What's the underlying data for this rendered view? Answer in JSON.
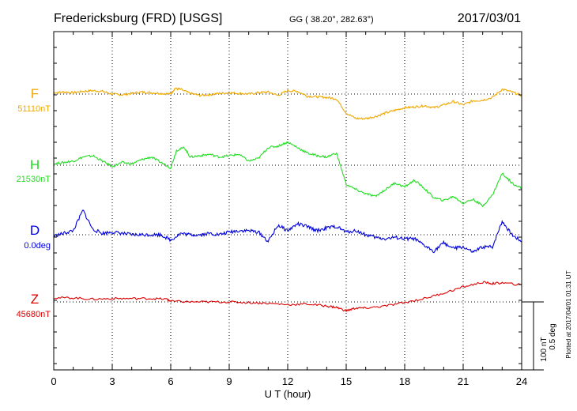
{
  "header": {
    "station": "Fredericksburg (FRD)  [USGS]",
    "coords": "GG ( 38.20°, 282.63°)",
    "date": "2017/03/01"
  },
  "side_note": "Plotted at 2017/04/01 01:31  UT",
  "scale": {
    "nt": "100 nT",
    "deg": "0.5 deg"
  },
  "chart_data": {
    "type": "line",
    "title": "Fredericksburg (FRD)  [USGS]",
    "xlabel": "U T (hour)",
    "xlim": [
      0,
      24
    ],
    "xticks": [
      "0",
      "3",
      "6",
      "9",
      "12",
      "15",
      "18",
      "21",
      "24"
    ],
    "grid": "dotted",
    "series": [
      {
        "name": "F",
        "baseline_label": "51110nT",
        "color": "#f0a800",
        "unit": "nT",
        "offset": 51110,
        "x": [
          0,
          0.5,
          1,
          1.5,
          2,
          2.5,
          3,
          3.5,
          4,
          4.5,
          5,
          5.5,
          6,
          6.2,
          6.5,
          7,
          7.5,
          8,
          8.5,
          9,
          9.5,
          10,
          10.5,
          11,
          11.5,
          12,
          12.5,
          13,
          13.5,
          14,
          14.5,
          15,
          15.5,
          16,
          16.5,
          17,
          17.5,
          18,
          18.5,
          19,
          19.5,
          20,
          20.5,
          21,
          21.5,
          22,
          22.5,
          23,
          23.5,
          24
        ],
        "y": [
          2,
          3,
          2,
          4,
          5,
          4,
          0,
          -1,
          1,
          3,
          2,
          1,
          0,
          8,
          7,
          1,
          -2,
          -1,
          1,
          2,
          1,
          0,
          2,
          3,
          -2,
          5,
          4,
          -3,
          -4,
          -5,
          -7,
          -28,
          -36,
          -36,
          -33,
          -28,
          -24,
          -20,
          -19,
          -17,
          -20,
          -16,
          -11,
          -16,
          -10,
          -9,
          -5,
          7,
          3,
          -2
        ]
      },
      {
        "name": "H",
        "baseline_label": "21530nT",
        "color": "#22dd22",
        "unit": "nT",
        "offset": 21530,
        "x": [
          0,
          0.5,
          1,
          1.5,
          2,
          2.5,
          3,
          3.5,
          4,
          4.5,
          5,
          5.5,
          6,
          6.3,
          6.7,
          7,
          7.5,
          8,
          8.5,
          9,
          9.5,
          10,
          10.5,
          11,
          11.5,
          12,
          12.5,
          13,
          13.5,
          14,
          14.5,
          15,
          15.5,
          16,
          16.5,
          17,
          17.5,
          18,
          18.5,
          19,
          19.5,
          20,
          20.5,
          21,
          21.5,
          22,
          22.5,
          23,
          23.5,
          24
        ],
        "y": [
          2,
          4,
          6,
          12,
          14,
          6,
          -2,
          4,
          2,
          8,
          12,
          4,
          -4,
          22,
          26,
          12,
          14,
          16,
          12,
          14,
          16,
          6,
          10,
          26,
          28,
          34,
          26,
          18,
          14,
          12,
          18,
          -28,
          -36,
          -42,
          -46,
          -36,
          -26,
          -32,
          -22,
          -34,
          -48,
          -52,
          -46,
          -56,
          -50,
          -60,
          -44,
          -12,
          -26,
          -34
        ]
      },
      {
        "name": "D",
        "baseline_label": "0.0deg",
        "color": "#0000dd",
        "unit": "deg",
        "offset": 0.0,
        "x": [
          0,
          0.5,
          1,
          1.5,
          2,
          2.5,
          3,
          3.5,
          4,
          4.5,
          5,
          5.5,
          6,
          6.5,
          7,
          7.5,
          8,
          8.5,
          9,
          9.5,
          10,
          10.5,
          11,
          11.5,
          12,
          12.5,
          13,
          13.5,
          14,
          14.5,
          15,
          15.5,
          16,
          16.5,
          17,
          17.5,
          18,
          18.5,
          19,
          19.5,
          20,
          20.5,
          21,
          21.5,
          22,
          22.5,
          23,
          23.5,
          24
        ],
        "y": [
          -0.01,
          0.01,
          0.03,
          0.18,
          0.04,
          0.01,
          0.02,
          0.01,
          0.0,
          0.0,
          0.0,
          0.0,
          -0.04,
          0.01,
          0.0,
          0.0,
          0.01,
          0.0,
          0.02,
          0.03,
          0.03,
          0.02,
          -0.05,
          0.07,
          0.03,
          0.08,
          0.06,
          0.03,
          0.05,
          0.06,
          0.02,
          0.03,
          0.0,
          -0.02,
          -0.03,
          -0.02,
          -0.03,
          -0.03,
          -0.08,
          -0.12,
          -0.06,
          -0.1,
          -0.09,
          -0.13,
          -0.09,
          -0.09,
          0.1,
          0.0,
          -0.05
        ]
      },
      {
        "name": "Z",
        "baseline_label": "45680nT",
        "color": "#dd0000",
        "unit": "nT",
        "offset": 45680,
        "x": [
          0,
          1,
          2,
          3,
          4,
          5,
          5.8,
          6,
          7,
          8,
          9,
          10,
          11,
          12,
          13,
          14,
          14.5,
          15,
          15.5,
          16,
          17,
          18,
          19,
          20,
          21,
          22,
          22.5,
          23,
          24
        ],
        "y": [
          6,
          6,
          4,
          5,
          5,
          5,
          4,
          1,
          0,
          0,
          0,
          -1,
          -2,
          -4,
          -3,
          -6,
          -8,
          -13,
          -9,
          -9,
          -6,
          -1,
          5,
          13,
          22,
          29,
          27,
          28,
          25
        ]
      }
    ]
  }
}
